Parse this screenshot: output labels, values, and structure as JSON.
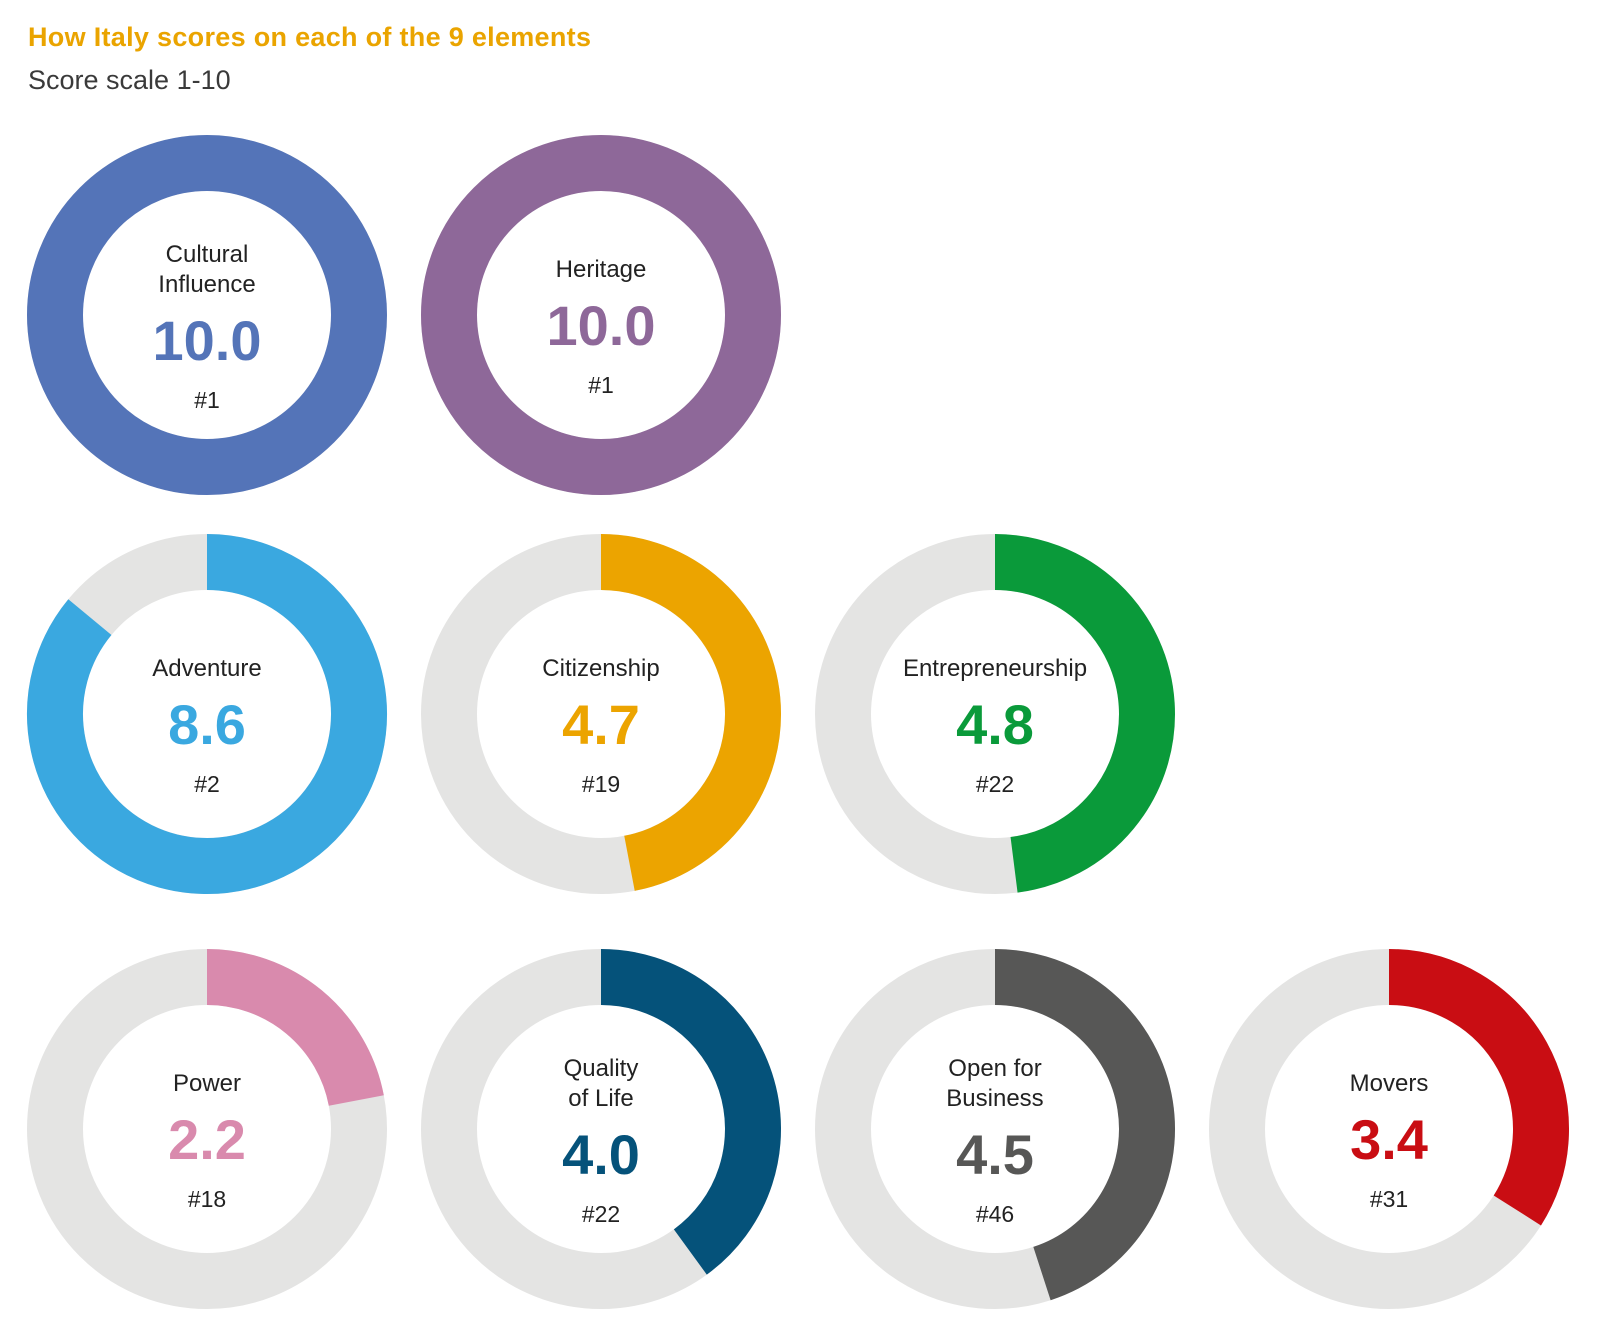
{
  "title": "How Italy scores on each of the 9 elements",
  "subtitle": "Score scale 1-10",
  "chart_data": {
    "type": "donut",
    "title": "How Italy scores on each of the 9 elements",
    "subtitle": "Score scale 1-10",
    "scale_max": 10,
    "track_color": "#e4e4e3",
    "items": [
      {
        "label_lines": [
          "Cultural",
          "Influence"
        ],
        "value": 10.0,
        "value_label": "10.0",
        "rank": "#1",
        "color": "#5474b8"
      },
      {
        "label_lines": [
          "Heritage"
        ],
        "value": 10.0,
        "value_label": "10.0",
        "rank": "#1",
        "color": "#8e6899"
      },
      {
        "label_lines": [
          "Adventure"
        ],
        "value": 8.6,
        "value_label": "8.6",
        "rank": "#2",
        "color": "#3aa8e0"
      },
      {
        "label_lines": [
          "Citizenship"
        ],
        "value": 4.7,
        "value_label": "4.7",
        "rank": "#19",
        "color": "#eca400"
      },
      {
        "label_lines": [
          "Entrepreneurship"
        ],
        "value": 4.8,
        "value_label": "4.8",
        "rank": "#22",
        "color": "#0a9a3a"
      },
      {
        "label_lines": [
          "Power"
        ],
        "value": 2.2,
        "value_label": "2.2",
        "rank": "#18",
        "color": "#d98aad"
      },
      {
        "label_lines": [
          "Quality",
          "of Life"
        ],
        "value": 4.0,
        "value_label": "4.0",
        "rank": "#22",
        "color": "#05527a"
      },
      {
        "label_lines": [
          "Open for",
          "Business"
        ],
        "value": 4.5,
        "value_label": "4.5",
        "rank": "#46",
        "color": "#575756"
      },
      {
        "label_lines": [
          "Movers"
        ],
        "value": 3.4,
        "value_label": "3.4",
        "rank": "#31",
        "color": "#c90d13"
      }
    ]
  }
}
